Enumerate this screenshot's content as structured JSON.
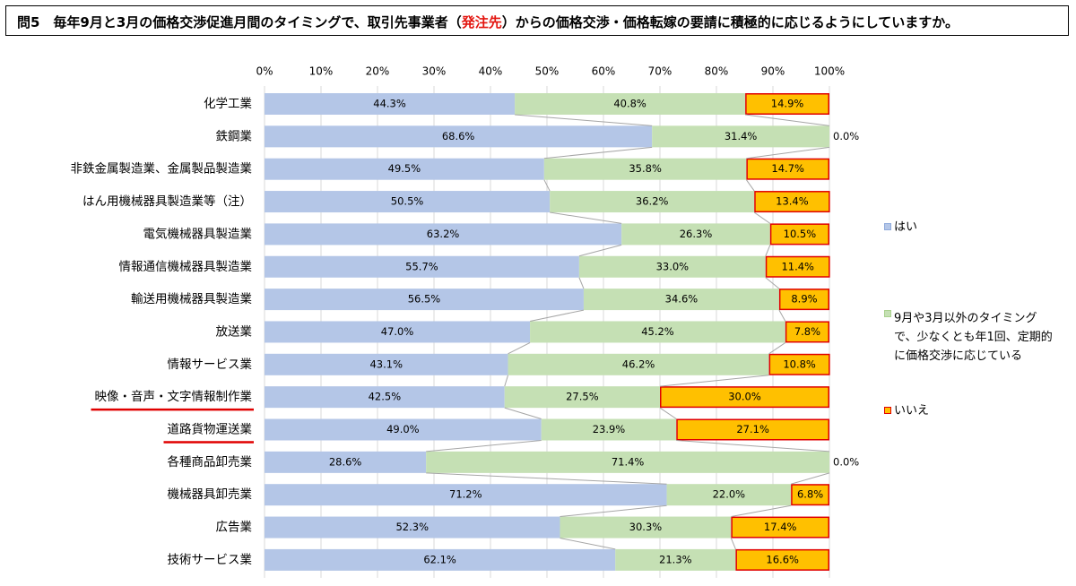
{
  "title": {
    "prefix": "問5　毎年9月と3月の価格交渉促進月間のタイミングで、取引先事業者（",
    "highlight": "発注先",
    "suffix": "）からの価格交渉・価格転嫁の要請に積極的に応じるようにしていますか。"
  },
  "colors": {
    "yes": "#b4c6e7",
    "other": "#c5e0b4",
    "no": "#ffc000",
    "no_border": "#e00000",
    "connector": "#a6a6a6",
    "grid": "#d9d9d9",
    "underline": "#e00000",
    "highlight_text": "#e3150f"
  },
  "legend": {
    "yes": "はい",
    "other_lines": [
      "9月や3月以外のタイミング",
      "で、少なくとも年1回、定期的",
      "に価格交渉に応じている"
    ],
    "no": "いいえ"
  },
  "chart_data": {
    "type": "bar",
    "orientation": "horizontal",
    "stacked": "percent",
    "xlim": [
      0,
      100
    ],
    "xticks": [
      "0%",
      "10%",
      "20%",
      "30%",
      "40%",
      "50%",
      "60%",
      "70%",
      "80%",
      "90%",
      "100%"
    ],
    "grid": true,
    "legend_position": "right",
    "categories": [
      "化学工業",
      "鉄鋼業",
      "非鉄金属製造業、金属製品製造業",
      "はん用機械器具製造業等（注）",
      "電気機械器具製造業",
      "情報通信機械器具製造業",
      "輸送用機械器具製造業",
      "放送業",
      "情報サービス業",
      "映像・音声・文字情報制作業",
      "道路貨物運送業",
      "各種商品卸売業",
      "機械器具卸売業",
      "広告業",
      "技術サービス業"
    ],
    "underlined_categories": [
      "映像・音声・文字情報制作業",
      "道路貨物運送業"
    ],
    "series": [
      {
        "name": "はい",
        "values": [
          44.3,
          68.6,
          49.5,
          50.5,
          63.2,
          55.7,
          56.5,
          47.0,
          43.1,
          42.5,
          49.0,
          28.6,
          71.2,
          52.3,
          62.1
        ],
        "labels": [
          "44.3%",
          "68.6%",
          "49.5%",
          "50.5%",
          "63.2%",
          "55.7%",
          "56.5%",
          "47.0%",
          "43.1%",
          "42.5%",
          "49.0%",
          "28.6%",
          "71.2%",
          "52.3%",
          "62.1%"
        ]
      },
      {
        "name": "9月や3月以外のタイミングで、少なくとも年1回、定期的に価格交渉に応じている",
        "values": [
          40.8,
          31.4,
          35.8,
          36.2,
          26.3,
          33.0,
          34.6,
          45.2,
          46.2,
          27.5,
          23.9,
          71.4,
          22.0,
          30.3,
          21.3
        ],
        "labels": [
          "40.8%",
          "31.4%",
          "35.8%",
          "36.2%",
          "26.3%",
          "33.0%",
          "34.6%",
          "45.2%",
          "46.2%",
          "27.5%",
          "23.9%",
          "71.4%",
          "22.0%",
          "30.3%",
          "21.3%"
        ]
      },
      {
        "name": "いいえ",
        "values": [
          14.9,
          0.0,
          14.7,
          13.4,
          10.5,
          11.4,
          8.9,
          7.8,
          10.8,
          30.0,
          27.1,
          0.0,
          6.8,
          17.4,
          16.6
        ],
        "labels": [
          "14.9%",
          "0.0%",
          "14.7%",
          "13.4%",
          "10.5%",
          "11.4%",
          "8.9%",
          "7.8%",
          "10.8%",
          "30.0%",
          "27.1%",
          "0.0%",
          "6.8%",
          "17.4%",
          "16.6%"
        ]
      }
    ]
  }
}
